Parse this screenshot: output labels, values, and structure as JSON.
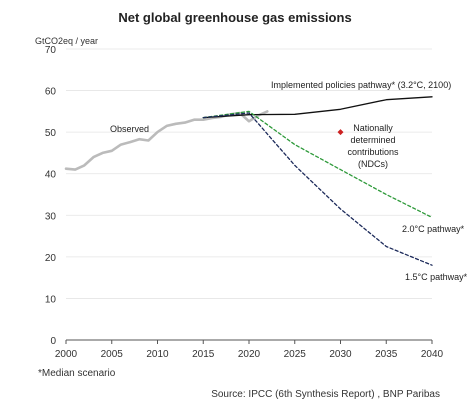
{
  "chart_data": {
    "type": "line",
    "title": "Net global greenhouse gas emissions",
    "ylabel": "GtCO2eq / year",
    "xlim": [
      2000,
      2040
    ],
    "ylim": [
      0,
      70
    ],
    "xticks": [
      2000,
      2005,
      2010,
      2015,
      2020,
      2025,
      2030,
      2035,
      2040
    ],
    "yticks": [
      0,
      10,
      20,
      30,
      40,
      50,
      60,
      70
    ],
    "grid": "horizontal",
    "series": [
      {
        "name": "Observed",
        "color": "#bbbbbb",
        "style": "solid",
        "points": [
          [
            2000,
            41.2
          ],
          [
            2001,
            41.0
          ],
          [
            2002,
            42.0
          ],
          [
            2003,
            44.0
          ],
          [
            2004,
            45.0
          ],
          [
            2005,
            45.5
          ],
          [
            2006,
            47.0
          ],
          [
            2007,
            47.6
          ],
          [
            2008,
            48.3
          ],
          [
            2009,
            48.0
          ],
          [
            2010,
            50.0
          ],
          [
            2011,
            51.5
          ],
          [
            2012,
            52.0
          ],
          [
            2013,
            52.3
          ],
          [
            2014,
            53.0
          ],
          [
            2015,
            53.0
          ],
          [
            2016,
            53.4
          ],
          [
            2017,
            53.7
          ],
          [
            2018,
            54.3
          ],
          [
            2019,
            54.6
          ],
          [
            2020,
            52.6
          ],
          [
            2021,
            54.0
          ],
          [
            2022,
            55.0
          ]
        ]
      },
      {
        "name": "Implemented policies pathway* (3.2°C, 2100)",
        "color": "#111111",
        "style": "solid",
        "points": [
          [
            2015,
            53.5
          ],
          [
            2020,
            54.2
          ],
          [
            2025,
            54.3
          ],
          [
            2030,
            55.5
          ],
          [
            2035,
            57.8
          ],
          [
            2040,
            58.5
          ]
        ]
      },
      {
        "name": "2.0°C pathway*",
        "color": "#2e9a3a",
        "style": "dashed",
        "points": [
          [
            2015,
            53.5
          ],
          [
            2020,
            55.0
          ],
          [
            2025,
            47.0
          ],
          [
            2030,
            41.0
          ],
          [
            2035,
            35.0
          ],
          [
            2040,
            29.5
          ]
        ]
      },
      {
        "name": "1.5°C pathway*",
        "color": "#1c2a5a",
        "style": "dashed",
        "points": [
          [
            2015,
            53.5
          ],
          [
            2020,
            54.6
          ],
          [
            2025,
            42.0
          ],
          [
            2030,
            31.5
          ],
          [
            2035,
            22.5
          ],
          [
            2040,
            18.0
          ]
        ]
      }
    ],
    "markers": [
      {
        "name": "Nationally determined contributions (NDCs)",
        "x": 2030,
        "y": 50,
        "color": "#cc2222"
      }
    ],
    "annotations": {
      "observed": "Observed",
      "implemented": "Implemented policies pathway* (3.2°C, 2100)",
      "ndc_lines": [
        "Nationally",
        "determined",
        "contributions",
        "(NDCs)"
      ],
      "p20": "2.0°C pathway*",
      "p15": "1.5°C pathway*"
    },
    "footnote": "*Median scenario",
    "source": "Source: IPCC (6th Synthesis Report) , BNP Paribas"
  }
}
